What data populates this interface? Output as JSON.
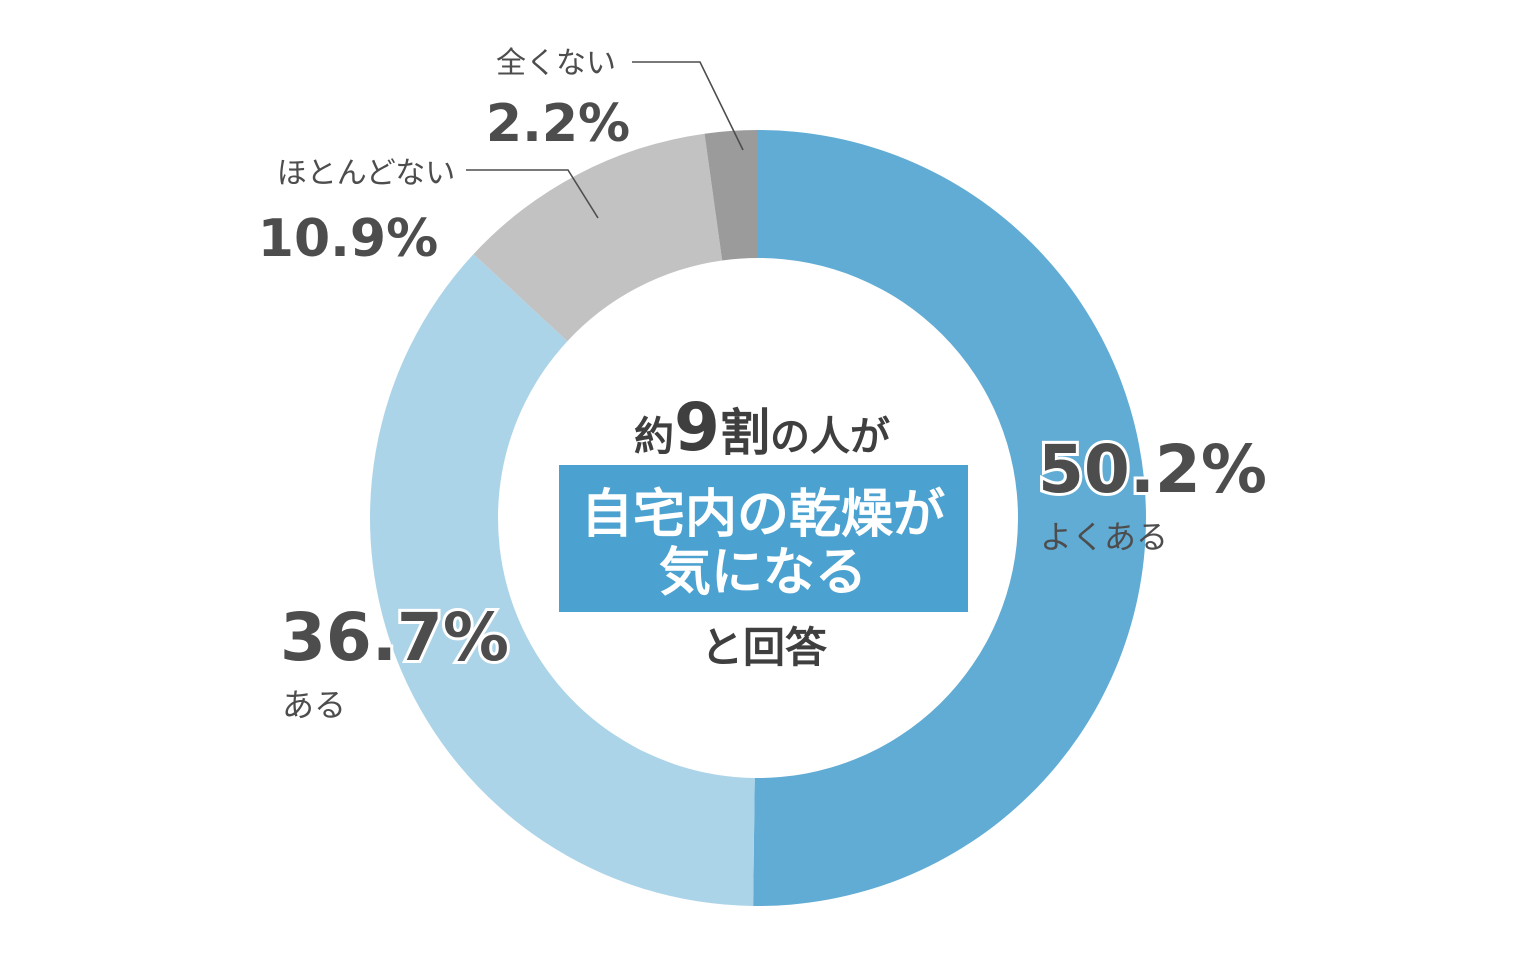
{
  "chart_data": {
    "type": "pie",
    "donut": true,
    "start": "top",
    "direction": "clockwise",
    "slices": [
      {
        "label": "よくある",
        "value": 50.2,
        "display": "50.2%",
        "color": "#61acd5"
      },
      {
        "label": "ある",
        "value": 36.7,
        "display": "36.7%",
        "color": "#acd4e8"
      },
      {
        "label": "ほとんどない",
        "value": 10.9,
        "display": "10.9%",
        "color": "#c2c2c2"
      },
      {
        "label": "全くない",
        "value": 2.2,
        "display": "2.2%",
        "color": "#9b9b9b"
      }
    ]
  },
  "center": {
    "prefix": "約",
    "number": "9",
    "unit": "割",
    "suffix": "の人が",
    "banner_line1": "自宅内の乾燥が",
    "banner_line2": "気になる",
    "footer": "と回答",
    "banner_color": "#4ba1cf"
  }
}
